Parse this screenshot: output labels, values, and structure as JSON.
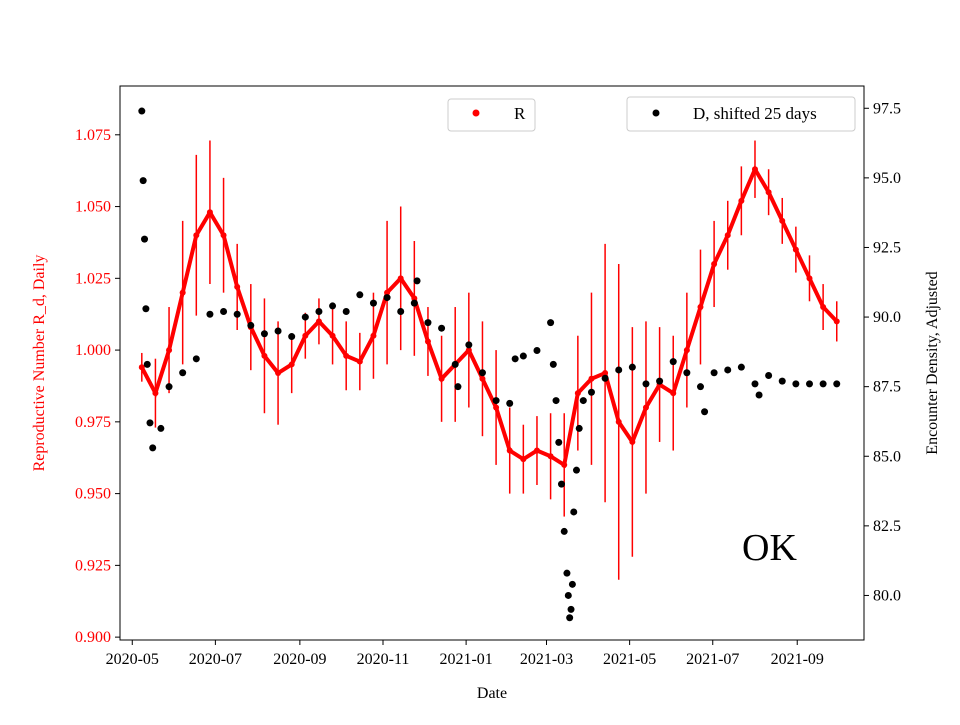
{
  "chart_data": {
    "type": "scatter",
    "xlabel": "Date",
    "ylabel_left": "Reproductive Number R_d, Daily",
    "ylabel_right": "Encounter Density, Adjusted",
    "annotation": "OK",
    "x_ticks": [
      "2020-05",
      "2020-07",
      "2020-09",
      "2020-11",
      "2021-01",
      "2021-03",
      "2021-05",
      "2021-07",
      "2021-09"
    ],
    "xlim": [
      "2020-04-22",
      "2021-10-20"
    ],
    "y_left": {
      "ticks": [
        "0.900",
        "0.925",
        "0.950",
        "0.975",
        "1.000",
        "1.025",
        "1.050",
        "1.075"
      ],
      "ylim": [
        0.899,
        1.092
      ],
      "color": "#ff0000"
    },
    "y_right": {
      "ticks": [
        "80.0",
        "82.5",
        "85.0",
        "87.5",
        "90.0",
        "92.5",
        "95.0",
        "97.5"
      ],
      "ylim": [
        78.4,
        98.3
      ],
      "color": "#000000"
    },
    "grid": false,
    "legends": [
      {
        "label": "R",
        "color": "#ff0000",
        "placement": "upper-center"
      },
      {
        "label": "D, shifted 25 days",
        "color": "#000000",
        "placement": "upper-right"
      }
    ],
    "series": [
      {
        "name": "R",
        "axis": "left",
        "color": "#ff0000",
        "x": [
          "2020-05-08",
          "2020-05-18",
          "2020-05-28",
          "2020-06-07",
          "2020-06-17",
          "2020-06-27",
          "2020-07-07",
          "2020-07-17",
          "2020-07-27",
          "2020-08-06",
          "2020-08-16",
          "2020-08-26",
          "2020-09-05",
          "2020-09-15",
          "2020-09-25",
          "2020-10-05",
          "2020-10-15",
          "2020-10-25",
          "2020-11-04",
          "2020-11-14",
          "2020-11-24",
          "2020-12-04",
          "2020-12-14",
          "2020-12-24",
          "2021-01-03",
          "2021-01-13",
          "2021-01-23",
          "2021-02-02",
          "2021-02-12",
          "2021-02-22",
          "2021-03-04",
          "2021-03-14",
          "2021-03-24",
          "2021-04-03",
          "2021-04-13",
          "2021-04-23",
          "2021-05-03",
          "2021-05-13",
          "2021-05-23",
          "2021-06-02",
          "2021-06-12",
          "2021-06-22",
          "2021-07-02",
          "2021-07-12",
          "2021-07-22",
          "2021-08-01",
          "2021-08-11",
          "2021-08-21",
          "2021-08-31",
          "2021-09-10",
          "2021-09-20",
          "2021-09-30"
        ],
        "y": [
          0.994,
          0.985,
          1.0,
          1.02,
          1.04,
          1.048,
          1.04,
          1.022,
          1.008,
          0.998,
          0.992,
          0.995,
          1.005,
          1.01,
          1.005,
          0.998,
          0.996,
          1.005,
          1.02,
          1.025,
          1.018,
          1.003,
          0.99,
          0.995,
          1.0,
          0.99,
          0.98,
          0.965,
          0.962,
          0.965,
          0.963,
          0.96,
          0.985,
          0.99,
          0.992,
          0.975,
          0.968,
          0.98,
          0.988,
          0.985,
          1.0,
          1.015,
          1.03,
          1.04,
          1.052,
          1.063,
          1.055,
          1.045,
          1.035,
          1.025,
          1.015,
          1.01
        ],
        "error": [
          0.005,
          0.012,
          0.015,
          0.025,
          0.028,
          0.025,
          0.02,
          0.015,
          0.015,
          0.02,
          0.018,
          0.01,
          0.008,
          0.008,
          0.01,
          0.012,
          0.01,
          0.015,
          0.025,
          0.025,
          0.02,
          0.012,
          0.015,
          0.02,
          0.02,
          0.02,
          0.02,
          0.015,
          0.012,
          0.012,
          0.015,
          0.018,
          0.02,
          0.03,
          0.045,
          0.055,
          0.04,
          0.03,
          0.02,
          0.02,
          0.02,
          0.02,
          0.015,
          0.012,
          0.012,
          0.01,
          0.008,
          0.008,
          0.008,
          0.008,
          0.008,
          0.007
        ]
      },
      {
        "name": "D, shifted 25 days",
        "axis": "right",
        "color": "#000000",
        "x": [
          "2020-05-08",
          "2020-05-09",
          "2020-05-10",
          "2020-05-11",
          "2020-05-12",
          "2020-05-14",
          "2020-05-16",
          "2020-05-22",
          "2020-05-28",
          "2020-06-07",
          "2020-06-17",
          "2020-06-27",
          "2020-07-07",
          "2020-07-17",
          "2020-07-27",
          "2020-08-06",
          "2020-08-16",
          "2020-08-26",
          "2020-09-05",
          "2020-09-15",
          "2020-09-25",
          "2020-10-05",
          "2020-10-15",
          "2020-10-25",
          "2020-11-04",
          "2020-11-14",
          "2020-11-24",
          "2020-11-26",
          "2020-12-04",
          "2020-12-14",
          "2020-12-24",
          "2020-12-26",
          "2021-01-03",
          "2021-01-13",
          "2021-01-23",
          "2021-02-02",
          "2021-02-06",
          "2021-02-12",
          "2021-02-22",
          "2021-03-04",
          "2021-03-06",
          "2021-03-08",
          "2021-03-10",
          "2021-03-12",
          "2021-03-14",
          "2021-03-16",
          "2021-03-17",
          "2021-03-18",
          "2021-03-19",
          "2021-03-20",
          "2021-03-21",
          "2021-03-23",
          "2021-03-25",
          "2021-03-28",
          "2021-04-03",
          "2021-04-13",
          "2021-04-23",
          "2021-05-03",
          "2021-05-13",
          "2021-05-23",
          "2021-06-02",
          "2021-06-12",
          "2021-06-22",
          "2021-06-25",
          "2021-07-02",
          "2021-07-12",
          "2021-07-22",
          "2021-08-01",
          "2021-08-04",
          "2021-08-11",
          "2021-08-21",
          "2021-08-31",
          "2021-09-10",
          "2021-09-20",
          "2021-09-30"
        ],
        "y": [
          97.4,
          94.9,
          92.8,
          90.3,
          88.3,
          86.2,
          85.3,
          86.0,
          87.5,
          88.0,
          88.5,
          90.1,
          90.2,
          90.1,
          89.7,
          89.4,
          89.5,
          89.3,
          90.0,
          90.2,
          90.4,
          90.2,
          90.8,
          90.5,
          90.7,
          90.2,
          90.5,
          91.3,
          89.8,
          89.6,
          88.3,
          87.5,
          89.0,
          88.0,
          87.0,
          86.9,
          88.5,
          88.6,
          88.8,
          89.8,
          88.3,
          87.0,
          85.5,
          84.0,
          82.3,
          80.8,
          80.0,
          79.2,
          79.5,
          80.4,
          83.0,
          84.5,
          86.0,
          87.0,
          87.3,
          87.8,
          88.1,
          88.2,
          87.6,
          87.7,
          88.4,
          88.0,
          87.5,
          86.6,
          88.0,
          88.1,
          88.2,
          87.6,
          87.2,
          87.9,
          87.7,
          87.6,
          87.6,
          87.6,
          87.6
        ]
      }
    ]
  }
}
